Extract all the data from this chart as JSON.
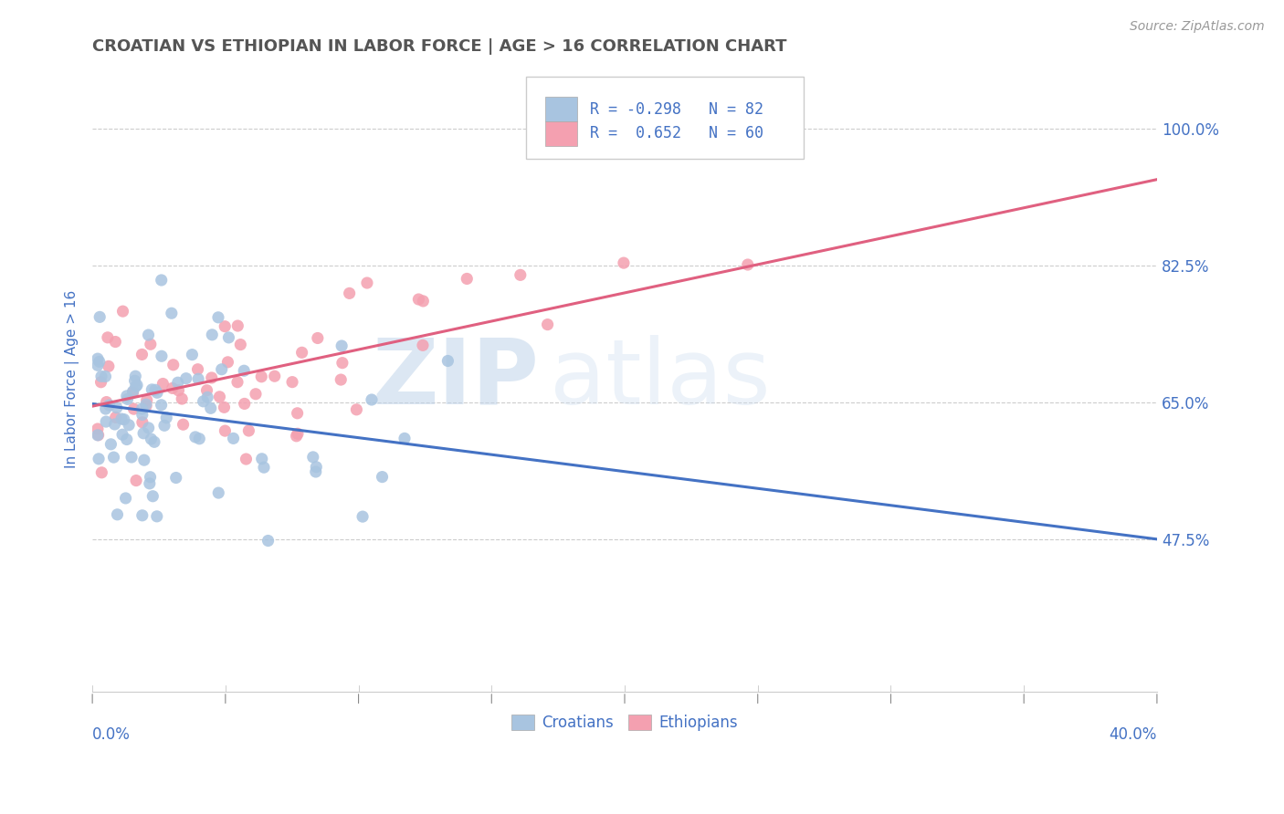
{
  "title": "CROATIAN VS ETHIOPIAN IN LABOR FORCE | AGE > 16 CORRELATION CHART",
  "source": "Source: ZipAtlas.com",
  "ylabel": "In Labor Force | Age > 16",
  "x_min": 0.0,
  "x_max": 0.4,
  "y_min": 0.28,
  "y_max": 1.08,
  "yticks": [
    0.475,
    0.65,
    0.825,
    1.0
  ],
  "ytick_labels": [
    "47.5%",
    "65.0%",
    "82.5%",
    "100.0%"
  ],
  "xticks_minor": [
    0.0,
    0.05,
    0.1,
    0.15,
    0.2,
    0.25,
    0.3,
    0.35,
    0.4
  ],
  "xtick_left_label": "0.0%",
  "xtick_right_label": "40.0%",
  "croatian_color": "#a8c4e0",
  "ethiopian_color": "#f4a0b0",
  "croatian_line_color": "#4472c4",
  "ethiopian_line_color": "#e06080",
  "R_croatian": -0.298,
  "N_croatian": 82,
  "R_ethiopian": 0.652,
  "N_ethiopian": 60,
  "legend_label_croatian": "Croatians",
  "legend_label_ethiopian": "Ethiopians",
  "background_color": "#ffffff",
  "grid_color": "#cccccc",
  "title_color": "#555555",
  "axis_label_color": "#4472c4",
  "tick_color": "#4472c4",
  "watermark_zip": "ZIP",
  "watermark_atlas": "atlas",
  "cr_line_y0": 0.648,
  "cr_line_y1": 0.475,
  "et_line_y0": 0.645,
  "et_line_y1": 0.935
}
